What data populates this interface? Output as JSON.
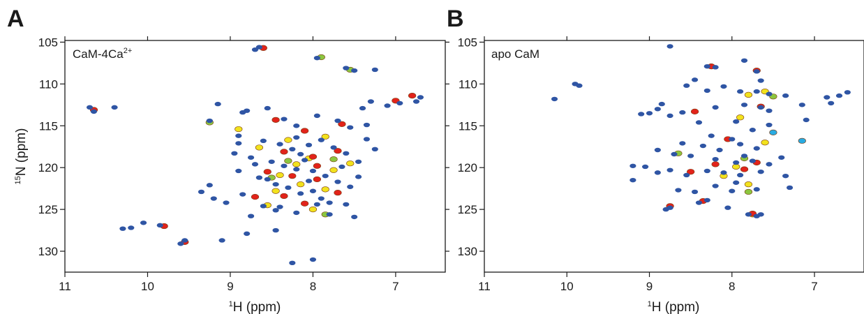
{
  "colors": {
    "blue": "#2f55a4",
    "red": "#e2231a",
    "yellow": "#f2e21d",
    "green": "#8cc63f",
    "orange": "#f7941d",
    "cyan": "#29abe2"
  },
  "chart_data": [
    {
      "type": "scatter",
      "panel_label": "A",
      "inset_label": "CaM-4Ca",
      "inset_label_sup": "2+",
      "xlabel_sup": "1",
      "xlabel": "H (ppm)",
      "ylabel_sup": "15",
      "ylabel": "N (ppm)",
      "xlim": [
        11.0,
        6.4
      ],
      "ylim": [
        132.5,
        104.8
      ],
      "x_reversed": true,
      "y_reversed": true,
      "xticks": [
        "11",
        "10",
        "9",
        "8",
        "7"
      ],
      "yticks": [
        "105",
        "110",
        "115",
        "120",
        "125",
        "130"
      ],
      "series": [
        {
          "color_key": "blue",
          "points": [
            [
              10.7,
              112.8
            ],
            [
              10.65,
              113.3
            ],
            [
              10.4,
              112.8
            ],
            [
              8.65,
              105.6
            ],
            [
              8.7,
              105.9
            ],
            [
              7.95,
              106.9
            ],
            [
              7.6,
              108.1
            ],
            [
              7.5,
              108.4
            ],
            [
              7.25,
              108.3
            ],
            [
              6.7,
              111.6
            ],
            [
              6.75,
              112.1
            ],
            [
              6.95,
              112.3
            ],
            [
              7.1,
              112.6
            ],
            [
              7.3,
              112.1
            ],
            [
              7.4,
              112.9
            ],
            [
              9.15,
              112.4
            ],
            [
              8.8,
              113.2
            ],
            [
              8.85,
              113.4
            ],
            [
              8.55,
              112.9
            ],
            [
              8.35,
              114.2
            ],
            [
              8.2,
              115.0
            ],
            [
              7.95,
              113.8
            ],
            [
              7.7,
              114.4
            ],
            [
              7.55,
              115.2
            ],
            [
              7.35,
              114.9
            ],
            [
              9.25,
              114.4
            ],
            [
              8.9,
              116.2
            ],
            [
              8.6,
              116.8
            ],
            [
              8.4,
              117.2
            ],
            [
              8.25,
              117.8
            ],
            [
              8.15,
              118.4
            ],
            [
              8.05,
              117.3
            ],
            [
              7.9,
              116.7
            ],
            [
              7.75,
              117.6
            ],
            [
              7.6,
              118.3
            ],
            [
              7.45,
              119.3
            ],
            [
              7.25,
              117.8
            ],
            [
              8.95,
              118.3
            ],
            [
              8.75,
              118.8
            ],
            [
              8.5,
              119.3
            ],
            [
              8.35,
              119.8
            ],
            [
              8.2,
              120.2
            ],
            [
              8.1,
              119.1
            ],
            [
              8.0,
              120.4
            ],
            [
              7.85,
              121.0
            ],
            [
              7.7,
              121.7
            ],
            [
              7.55,
              122.3
            ],
            [
              7.45,
              121.1
            ],
            [
              8.9,
              120.4
            ],
            [
              8.65,
              121.2
            ],
            [
              8.45,
              122.0
            ],
            [
              8.3,
              122.4
            ],
            [
              8.15,
              123.1
            ],
            [
              8.0,
              122.8
            ],
            [
              7.9,
              123.7
            ],
            [
              7.8,
              124.2
            ],
            [
              9.35,
              122.9
            ],
            [
              9.2,
              123.7
            ],
            [
              9.05,
              124.2
            ],
            [
              8.85,
              123.2
            ],
            [
              8.6,
              124.6
            ],
            [
              8.4,
              124.7
            ],
            [
              8.2,
              125.4
            ],
            [
              7.95,
              124.4
            ],
            [
              7.8,
              125.6
            ],
            [
              7.6,
              124.4
            ],
            [
              7.5,
              125.9
            ],
            [
              8.75,
              125.8
            ],
            [
              8.45,
              125.1
            ],
            [
              10.3,
              127.3
            ],
            [
              10.2,
              127.2
            ],
            [
              10.05,
              126.6
            ],
            [
              9.85,
              126.9
            ],
            [
              9.6,
              129.1
            ],
            [
              9.55,
              128.7
            ],
            [
              9.1,
              128.7
            ],
            [
              8.8,
              127.9
            ],
            [
              8.45,
              127.5
            ],
            [
              8.0,
              131.0
            ],
            [
              8.25,
              131.4
            ],
            [
              9.25,
              122.1
            ],
            [
              7.35,
              116.6
            ],
            [
              8.55,
              121.4
            ],
            [
              8.7,
              119.6
            ],
            [
              8.05,
              121.6
            ],
            [
              7.65,
              119.9
            ],
            [
              8.9,
              117.1
            ],
            [
              8.2,
              116.4
            ]
          ]
        },
        {
          "color_key": "red",
          "points": [
            [
              6.8,
              111.4
            ],
            [
              7.0,
              112.0
            ],
            [
              8.45,
              114.3
            ],
            [
              8.1,
              115.6
            ],
            [
              7.65,
              114.8
            ],
            [
              8.35,
              118.1
            ],
            [
              8.0,
              118.7
            ],
            [
              7.7,
              118.0
            ],
            [
              8.55,
              120.5
            ],
            [
              8.25,
              121.0
            ],
            [
              7.95,
              121.4
            ],
            [
              8.35,
              123.4
            ],
            [
              7.7,
              123.0
            ],
            [
              8.7,
              123.5
            ],
            [
              8.1,
              124.3
            ],
            [
              9.8,
              127.0
            ],
            [
              9.55,
              128.9
            ],
            [
              10.65,
              113.1
            ],
            [
              8.6,
              105.7
            ],
            [
              7.95,
              119.8
            ]
          ]
        },
        {
          "color_key": "yellow",
          "points": [
            [
              7.85,
              116.3
            ],
            [
              8.3,
              116.7
            ],
            [
              8.05,
              118.9
            ],
            [
              8.4,
              120.9
            ],
            [
              7.75,
              120.3
            ],
            [
              8.15,
              122.0
            ],
            [
              7.85,
              122.6
            ],
            [
              8.55,
              124.5
            ],
            [
              8.0,
              125.0
            ],
            [
              7.55,
              119.5
            ],
            [
              8.65,
              117.6
            ],
            [
              8.9,
              115.4
            ],
            [
              8.2,
              119.6
            ],
            [
              8.45,
              122.8
            ]
          ]
        },
        {
          "color_key": "green",
          "points": [
            [
              7.9,
              106.8
            ],
            [
              7.55,
              108.3
            ],
            [
              9.25,
              114.6
            ],
            [
              7.75,
              119.0
            ],
            [
              8.5,
              121.2
            ],
            [
              8.3,
              119.2
            ],
            [
              7.85,
              125.6
            ]
          ]
        }
      ]
    },
    {
      "type": "scatter",
      "panel_label": "B",
      "inset_label": "apo CaM",
      "inset_label_sup": "",
      "xlabel_sup": "1",
      "xlabel": "H (ppm)",
      "xlim": [
        11.0,
        6.4
      ],
      "ylim": [
        132.5,
        104.8
      ],
      "x_reversed": true,
      "y_reversed": true,
      "xticks": [
        "11",
        "10",
        "9",
        "8",
        "7"
      ],
      "yticks": [
        "105",
        "110",
        "115",
        "120",
        "125",
        "130"
      ],
      "series": [
        {
          "color_key": "blue",
          "points": [
            [
              8.75,
              105.5
            ],
            [
              10.15,
              111.8
            ],
            [
              9.9,
              110.0
            ],
            [
              9.85,
              110.2
            ],
            [
              8.3,
              107.9
            ],
            [
              8.2,
              108.0
            ],
            [
              7.85,
              107.2
            ],
            [
              7.7,
              108.5
            ],
            [
              7.65,
              109.6
            ],
            [
              8.45,
              109.5
            ],
            [
              8.55,
              110.2
            ],
            [
              8.3,
              110.8
            ],
            [
              8.1,
              110.3
            ],
            [
              7.9,
              110.9
            ],
            [
              7.7,
              110.9
            ],
            [
              7.55,
              111.2
            ],
            [
              7.35,
              111.4
            ],
            [
              7.65,
              112.8
            ],
            [
              7.55,
              113.2
            ],
            [
              7.15,
              112.5
            ],
            [
              7.1,
              114.3
            ],
            [
              6.8,
              112.3
            ],
            [
              6.7,
              111.4
            ],
            [
              6.6,
              111.0
            ],
            [
              6.85,
              111.6
            ],
            [
              8.85,
              112.4
            ],
            [
              8.9,
              113.0
            ],
            [
              8.6,
              113.4
            ],
            [
              8.2,
              112.8
            ],
            [
              7.85,
              112.5
            ],
            [
              9.1,
              113.6
            ],
            [
              9.0,
              113.5
            ],
            [
              8.75,
              113.8
            ],
            [
              8.4,
              114.6
            ],
            [
              7.95,
              114.5
            ],
            [
              7.75,
              115.5
            ],
            [
              7.55,
              114.9
            ],
            [
              8.25,
              116.2
            ],
            [
              8.0,
              116.6
            ],
            [
              8.6,
              117.1
            ],
            [
              8.35,
              117.4
            ],
            [
              7.9,
              117.2
            ],
            [
              7.7,
              117.7
            ],
            [
              8.9,
              117.9
            ],
            [
              8.7,
              118.4
            ],
            [
              8.5,
              118.6
            ],
            [
              8.2,
              119.0
            ],
            [
              7.95,
              119.4
            ],
            [
              7.75,
              119.2
            ],
            [
              7.55,
              119.6
            ],
            [
              7.4,
              118.8
            ],
            [
              9.2,
              119.8
            ],
            [
              9.05,
              119.9
            ],
            [
              8.9,
              120.6
            ],
            [
              8.75,
              120.3
            ],
            [
              8.55,
              120.9
            ],
            [
              8.3,
              120.4
            ],
            [
              8.1,
              120.6
            ],
            [
              7.9,
              120.9
            ],
            [
              7.65,
              120.5
            ],
            [
              7.35,
              121.0
            ],
            [
              7.3,
              122.4
            ],
            [
              8.65,
              122.7
            ],
            [
              8.45,
              122.9
            ],
            [
              8.2,
              122.2
            ],
            [
              8.0,
              122.8
            ],
            [
              7.7,
              122.6
            ],
            [
              8.3,
              123.9
            ],
            [
              8.4,
              124.2
            ],
            [
              8.05,
              124.8
            ],
            [
              8.75,
              124.8
            ],
            [
              8.8,
              125.0
            ],
            [
              7.8,
              125.6
            ],
            [
              7.7,
              125.8
            ],
            [
              7.65,
              125.6
            ],
            [
              9.2,
              121.5
            ],
            [
              8.15,
              117.9
            ],
            [
              7.85,
              118.6
            ],
            [
              7.95,
              121.8
            ]
          ]
        },
        {
          "color_key": "red",
          "points": [
            [
              8.25,
              107.9
            ],
            [
              7.7,
              108.4
            ],
            [
              7.65,
              112.7
            ],
            [
              8.45,
              113.3
            ],
            [
              8.05,
              116.6
            ],
            [
              8.2,
              119.6
            ],
            [
              7.7,
              119.4
            ],
            [
              8.5,
              120.5
            ],
            [
              8.35,
              124.0
            ],
            [
              8.75,
              124.6
            ],
            [
              7.75,
              125.5
            ],
            [
              7.85,
              120.2
            ]
          ]
        },
        {
          "color_key": "yellow",
          "points": [
            [
              7.6,
              110.9
            ],
            [
              7.8,
              111.3
            ],
            [
              7.9,
              114.0
            ],
            [
              7.6,
              117.0
            ],
            [
              7.8,
              122.0
            ],
            [
              8.1,
              121.0
            ],
            [
              7.75,
              125.6
            ],
            [
              7.95,
              119.9
            ]
          ]
        },
        {
          "color_key": "green",
          "points": [
            [
              7.5,
              111.5
            ],
            [
              7.85,
              118.9
            ],
            [
              8.65,
              118.3
            ],
            [
              7.8,
              122.9
            ]
          ]
        },
        {
          "color_key": "cyan",
          "points": [
            [
              7.15,
              116.8
            ],
            [
              7.5,
              115.8
            ]
          ]
        }
      ]
    }
  ]
}
